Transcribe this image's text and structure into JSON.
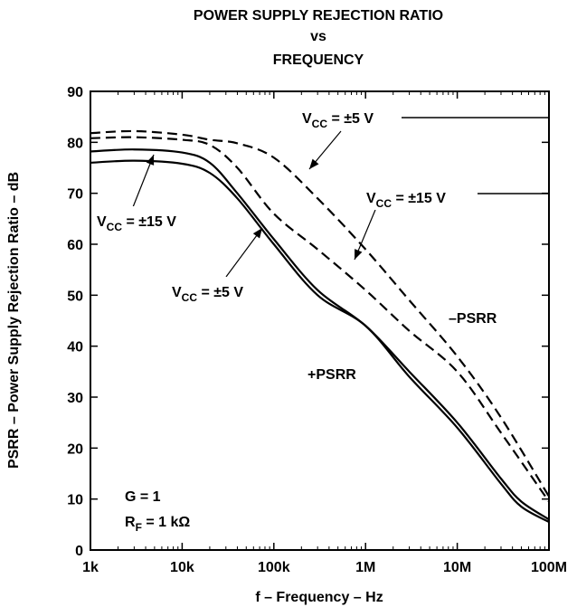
{
  "chart_data": {
    "type": "line",
    "title_lines": [
      "POWER SUPPLY REJECTION RATIO",
      "vs",
      "FREQUENCY"
    ],
    "xlabel": "f – Frequency – Hz",
    "ylabel": "PSRR – Power Supply Rejection Ratio – dB",
    "x_scale": "log",
    "xlim": [
      1000,
      100000000
    ],
    "ylim": [
      0,
      90
    ],
    "x_ticks": [
      {
        "value": 1000,
        "label": "1k"
      },
      {
        "value": 10000,
        "label": "10k"
      },
      {
        "value": 100000,
        "label": "100k"
      },
      {
        "value": 1000000,
        "label": "1M"
      },
      {
        "value": 10000000,
        "label": "10M"
      },
      {
        "value": 100000000,
        "label": "100M"
      }
    ],
    "y_ticks": [
      0,
      10,
      20,
      30,
      40,
      50,
      60,
      70,
      80,
      90
    ],
    "grid": false,
    "series": [
      {
        "style": "dashed",
        "x": [
          1000,
          3000,
          10000,
          20000,
          40000,
          100000,
          300000,
          1000000,
          3000000,
          10000000,
          30000000,
          100000000
        ],
        "y": [
          81.8,
          82.2,
          81.5,
          80.5,
          79.8,
          77,
          69,
          59,
          49,
          38,
          26,
          10.5
        ]
      },
      {
        "style": "dashed",
        "x": [
          1000,
          3000,
          10000,
          20000,
          40000,
          100000,
          300000,
          1000000,
          3000000,
          10000000,
          30000000,
          100000000
        ],
        "y": [
          80.8,
          81,
          80.5,
          79.5,
          75,
          66,
          59,
          51,
          43,
          35,
          23,
          9.5
        ]
      },
      {
        "style": "solid",
        "x": [
          1000,
          3000,
          10000,
          20000,
          40000,
          100000,
          300000,
          1000000,
          3000000,
          10000000,
          30000000,
          50000000,
          100000000
        ],
        "y": [
          78.2,
          78.6,
          78,
          76,
          70,
          61,
          51,
          44,
          35,
          25,
          14,
          9.5,
          6
        ]
      },
      {
        "style": "solid",
        "x": [
          1000,
          3000,
          10000,
          20000,
          40000,
          100000,
          300000,
          1000000,
          3000000,
          10000000,
          30000000,
          50000000,
          100000000
        ],
        "y": [
          76,
          76.4,
          75.8,
          74,
          69,
          60,
          50,
          44,
          34,
          24,
          13,
          8.5,
          5.5
        ]
      }
    ],
    "annotations": {
      "vcc5_dashed": {
        "main": "V",
        "sub": "CC",
        "rest": " = ±5 V"
      },
      "vcc15_dashed": {
        "main": "V",
        "sub": "CC",
        "rest": " = ±15 V"
      },
      "vcc15_solid": {
        "main": "V",
        "sub": "CC",
        "rest": " = ±15 V"
      },
      "vcc5_solid": {
        "main": "V",
        "sub": "CC",
        "rest": " = ±5 V"
      },
      "minus_psrr": "–PSRR",
      "plus_psrr": "+PSRR",
      "gain": "G = 1",
      "rf": {
        "main": "R",
        "sub": "F",
        "rest": " = 1 kΩ"
      }
    }
  }
}
